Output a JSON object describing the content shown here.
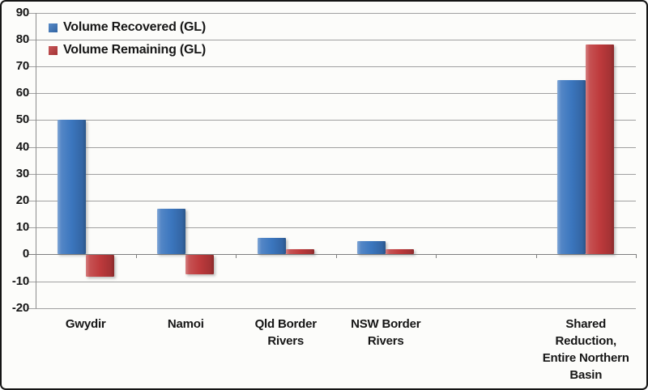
{
  "chart_data": {
    "type": "bar",
    "title": "",
    "xlabel": "",
    "ylabel": "",
    "categories": [
      "Gwydir",
      "Namoi",
      "Qld Border Rivers",
      "NSW Border Rivers",
      "",
      "Shared Reduction, Entire Northern Basin"
    ],
    "category_label_lines": [
      [
        "Gwydir"
      ],
      [
        "Namoi"
      ],
      [
        "Qld Border",
        "Rivers"
      ],
      [
        "NSW Border",
        "Rivers"
      ],
      [],
      [
        "Shared",
        "Reduction,",
        "Entire Northern",
        "Basin"
      ]
    ],
    "series": [
      {
        "name": "Volume Recovered (GL)",
        "color": "#3b76be",
        "values": [
          50,
          17,
          6,
          5,
          null,
          65
        ]
      },
      {
        "name": "Volume Remaining (GL)",
        "color": "#be3a3c",
        "values": [
          -8,
          -7,
          2,
          2,
          null,
          78
        ]
      }
    ],
    "ylim": [
      -20,
      90
    ],
    "ytick_step": 10,
    "yticks": [
      90,
      80,
      70,
      60,
      50,
      40,
      30,
      20,
      10,
      0,
      -10,
      -20
    ],
    "grid": true,
    "legend_position": "top-left"
  },
  "style": {
    "grid_color": "#a0a0a0",
    "axis_color": "#7f7f7f",
    "background": "#fcfcfa",
    "border_color": "#141414",
    "text_color": "#161616"
  }
}
